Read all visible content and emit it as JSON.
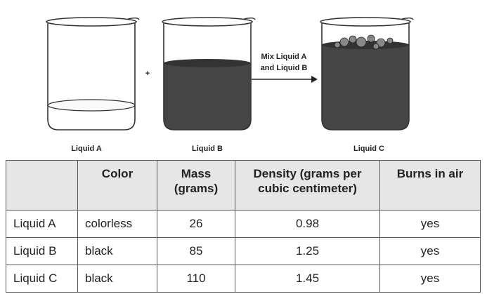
{
  "diagram": {
    "beakers": [
      {
        "label": "Liquid A"
      },
      {
        "label": "Liquid B"
      },
      {
        "label": "Liquid C"
      }
    ],
    "plus": "+",
    "arrow_label": [
      "Mix Liquid A",
      "and Liquid B"
    ]
  },
  "table": {
    "header": [
      "Color",
      "Mass (grams)",
      "Density (grams per cubic centimeter)",
      "Burns in air"
    ],
    "rows": [
      [
        "Liquid A",
        "colorless",
        26,
        0.98,
        "yes"
      ],
      [
        "Liquid B",
        "black",
        85,
        1.25,
        "yes"
      ],
      [
        "Liquid C",
        "black",
        110,
        1.45,
        "yes"
      ]
    ]
  }
}
